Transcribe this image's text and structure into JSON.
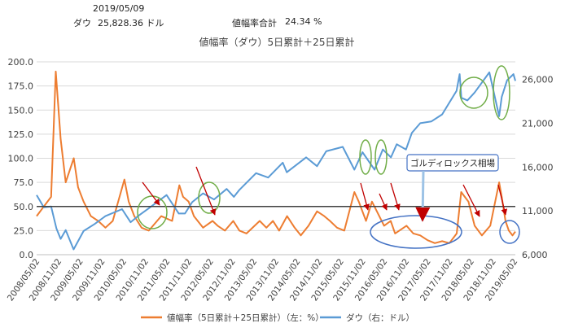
{
  "header": {
    "date": "2019/05/09",
    "dow_label": "ダウ",
    "dow_value": "25,828.36 ドル",
    "ratio_label": "値幅率合計",
    "ratio_value": "24.34 %"
  },
  "chart_data": {
    "type": "line",
    "title": "値幅率（ダウ）5日累計＋25日累計",
    "x_ticks": [
      "2008/05/02",
      "2008/11/02",
      "2009/05/02",
      "2009/11/02",
      "2010/05/02",
      "2010/11/02",
      "2011/05/02",
      "2011/11/02",
      "2012/05/02",
      "2012/11/02",
      "2013/05/02",
      "2013/11/02",
      "2014/05/02",
      "2014/11/02",
      "2015/05/02",
      "2015/11/02",
      "2016/05/02",
      "2016/11/02",
      "2017/05/02",
      "2017/11/02",
      "2018/05/02",
      "2018/11/02",
      "2019/05/02"
    ],
    "y_left": {
      "ticks": [
        "0.0",
        "25.0",
        "50.0",
        "75.0",
        "100.0",
        "125.0",
        "150.0",
        "175.0",
        "200.0"
      ],
      "lim": [
        0,
        200
      ]
    },
    "y_right": {
      "ticks": [
        "6,000",
        "11,000",
        "16,000",
        "21,000",
        "26,000"
      ],
      "lim": [
        6000,
        28000
      ]
    },
    "reference_line": 50,
    "annotation": "ゴルディロックス相場",
    "series": [
      {
        "name": "値幅率（5日累計＋25日累計）（左：%）",
        "axis": "left",
        "color": "#ED7D31",
        "points": [
          [
            "2008/05/02",
            40
          ],
          [
            "2008/07/01",
            50
          ],
          [
            "2008/09/01",
            60
          ],
          [
            "2008/10/10",
            190
          ],
          [
            "2008/11/20",
            120
          ],
          [
            "2009/01/01",
            75
          ],
          [
            "2009/03/10",
            100
          ],
          [
            "2009/04/15",
            70
          ],
          [
            "2009/06/01",
            55
          ],
          [
            "2009/08/01",
            40
          ],
          [
            "2009/10/01",
            35
          ],
          [
            "2009/12/01",
            28
          ],
          [
            "2010/02/01",
            35
          ],
          [
            "2010/05/10",
            78
          ],
          [
            "2010/06/15",
            55
          ],
          [
            "2010/08/01",
            40
          ],
          [
            "2010/10/01",
            28
          ],
          [
            "2010/12/01",
            25
          ],
          [
            "2011/03/15",
            40
          ],
          [
            "2011/06/15",
            35
          ],
          [
            "2011/08/15",
            72
          ],
          [
            "2011/09/15",
            60
          ],
          [
            "2011/11/01",
            55
          ],
          [
            "2011/12/15",
            40
          ],
          [
            "2012/03/01",
            28
          ],
          [
            "2012/05/20",
            35
          ],
          [
            "2012/07/01",
            30
          ],
          [
            "2012/09/01",
            25
          ],
          [
            "2012/11/10",
            35
          ],
          [
            "2013/01/01",
            25
          ],
          [
            "2013/03/01",
            22
          ],
          [
            "2013/06/20",
            35
          ],
          [
            "2013/08/15",
            28
          ],
          [
            "2013/10/10",
            35
          ],
          [
            "2013/12/01",
            25
          ],
          [
            "2014/02/05",
            40
          ],
          [
            "2014/04/10",
            28
          ],
          [
            "2014/06/01",
            20
          ],
          [
            "2014/08/05",
            30
          ],
          [
            "2014/10/15",
            45
          ],
          [
            "2014/12/15",
            40
          ],
          [
            "2015/02/01",
            35
          ],
          [
            "2015/04/01",
            28
          ],
          [
            "2015/06/01",
            25
          ],
          [
            "2015/08/25",
            65
          ],
          [
            "2015/10/01",
            55
          ],
          [
            "2015/12/01",
            35
          ],
          [
            "2016/01/20",
            55
          ],
          [
            "2016/03/01",
            45
          ],
          [
            "2016/05/01",
            30
          ],
          [
            "2016/06/25",
            35
          ],
          [
            "2016/08/01",
            22
          ],
          [
            "2016/11/05",
            30
          ],
          [
            "2017/01/01",
            22
          ],
          [
            "2017/03/01",
            20
          ],
          [
            "2017/05/01",
            15
          ],
          [
            "2017/07/01",
            12
          ],
          [
            "2017/09/01",
            14
          ],
          [
            "2017/11/01",
            12
          ],
          [
            "2018/01/01",
            22
          ],
          [
            "2018/02/08",
            65
          ],
          [
            "2018/03/10",
            60
          ],
          [
            "2018/04/10",
            55
          ],
          [
            "2018/06/01",
            30
          ],
          [
            "2018/08/01",
            20
          ],
          [
            "2018/10/10",
            30
          ],
          [
            "2018/12/24",
            75
          ],
          [
            "2019/01/15",
            60
          ],
          [
            "2019/02/15",
            35
          ],
          [
            "2019/03/15",
            25
          ],
          [
            "2019/04/15",
            20
          ],
          [
            "2019/05/09",
            24
          ]
        ]
      },
      {
        "name": "ダウ（右：ドル）",
        "axis": "right",
        "color": "#5B9BD5",
        "points": [
          [
            "2008/05/02",
            12800
          ],
          [
            "2008/07/01",
            11400
          ],
          [
            "2008/09/01",
            11500
          ],
          [
            "2008/10/15",
            9000
          ],
          [
            "2008/11/20",
            7800
          ],
          [
            "2009/01/01",
            8800
          ],
          [
            "2009/03/09",
            6600
          ],
          [
            "2009/06/01",
            8700
          ],
          [
            "2009/09/01",
            9500
          ],
          [
            "2009/12/01",
            10400
          ],
          [
            "2010/04/20",
            11200
          ],
          [
            "2010/07/01",
            9700
          ],
          [
            "2010/09/01",
            10400
          ],
          [
            "2010/12/01",
            11300
          ],
          [
            "2011/04/29",
            12800
          ],
          [
            "2011/08/10",
            10700
          ],
          [
            "2011/10/01",
            10700
          ],
          [
            "2011/12/01",
            12000
          ],
          [
            "2012/03/01",
            13000
          ],
          [
            "2012/06/01",
            12300
          ],
          [
            "2012/09/15",
            13500
          ],
          [
            "2012/11/15",
            12600
          ],
          [
            "2013/01/01",
            13400
          ],
          [
            "2013/05/20",
            15300
          ],
          [
            "2013/08/30",
            14800
          ],
          [
            "2013/12/31",
            16500
          ],
          [
            "2014/02/03",
            15400
          ],
          [
            "2014/07/15",
            17100
          ],
          [
            "2014/10/15",
            16100
          ],
          [
            "2014/12/31",
            17800
          ],
          [
            "2015/05/19",
            18300
          ],
          [
            "2015/08/25",
            15700
          ],
          [
            "2015/11/01",
            17700
          ],
          [
            "2016/02/11",
            15700
          ],
          [
            "2016/04/20",
            18000
          ],
          [
            "2016/06/27",
            17100
          ],
          [
            "2016/08/15",
            18600
          ],
          [
            "2016/11/01",
            18000
          ],
          [
            "2016/12/20",
            19900
          ],
          [
            "2017/03/01",
            21000
          ],
          [
            "2017/06/01",
            21200
          ],
          [
            "2017/09/01",
            22000
          ],
          [
            "2017/12/31",
            24700
          ],
          [
            "2018/01/26",
            26600
          ],
          [
            "2018/02/09",
            23900
          ],
          [
            "2018/04/01",
            23600
          ],
          [
            "2018/06/01",
            24500
          ],
          [
            "2018/10/03",
            26800
          ],
          [
            "2018/11/01",
            25000
          ],
          [
            "2018/12/24",
            21800
          ],
          [
            "2019/01/15",
            24000
          ],
          [
            "2019/03/01",
            25900
          ],
          [
            "2019/04/23",
            26600
          ],
          [
            "2019/05/09",
            25828
          ]
        ]
      }
    ],
    "legend_position": "bottom"
  },
  "annotations": {
    "green_ellipse_color": "#70AD47",
    "blue_ellipse_color": "#4472C4",
    "arrow_color": "#C00000"
  }
}
